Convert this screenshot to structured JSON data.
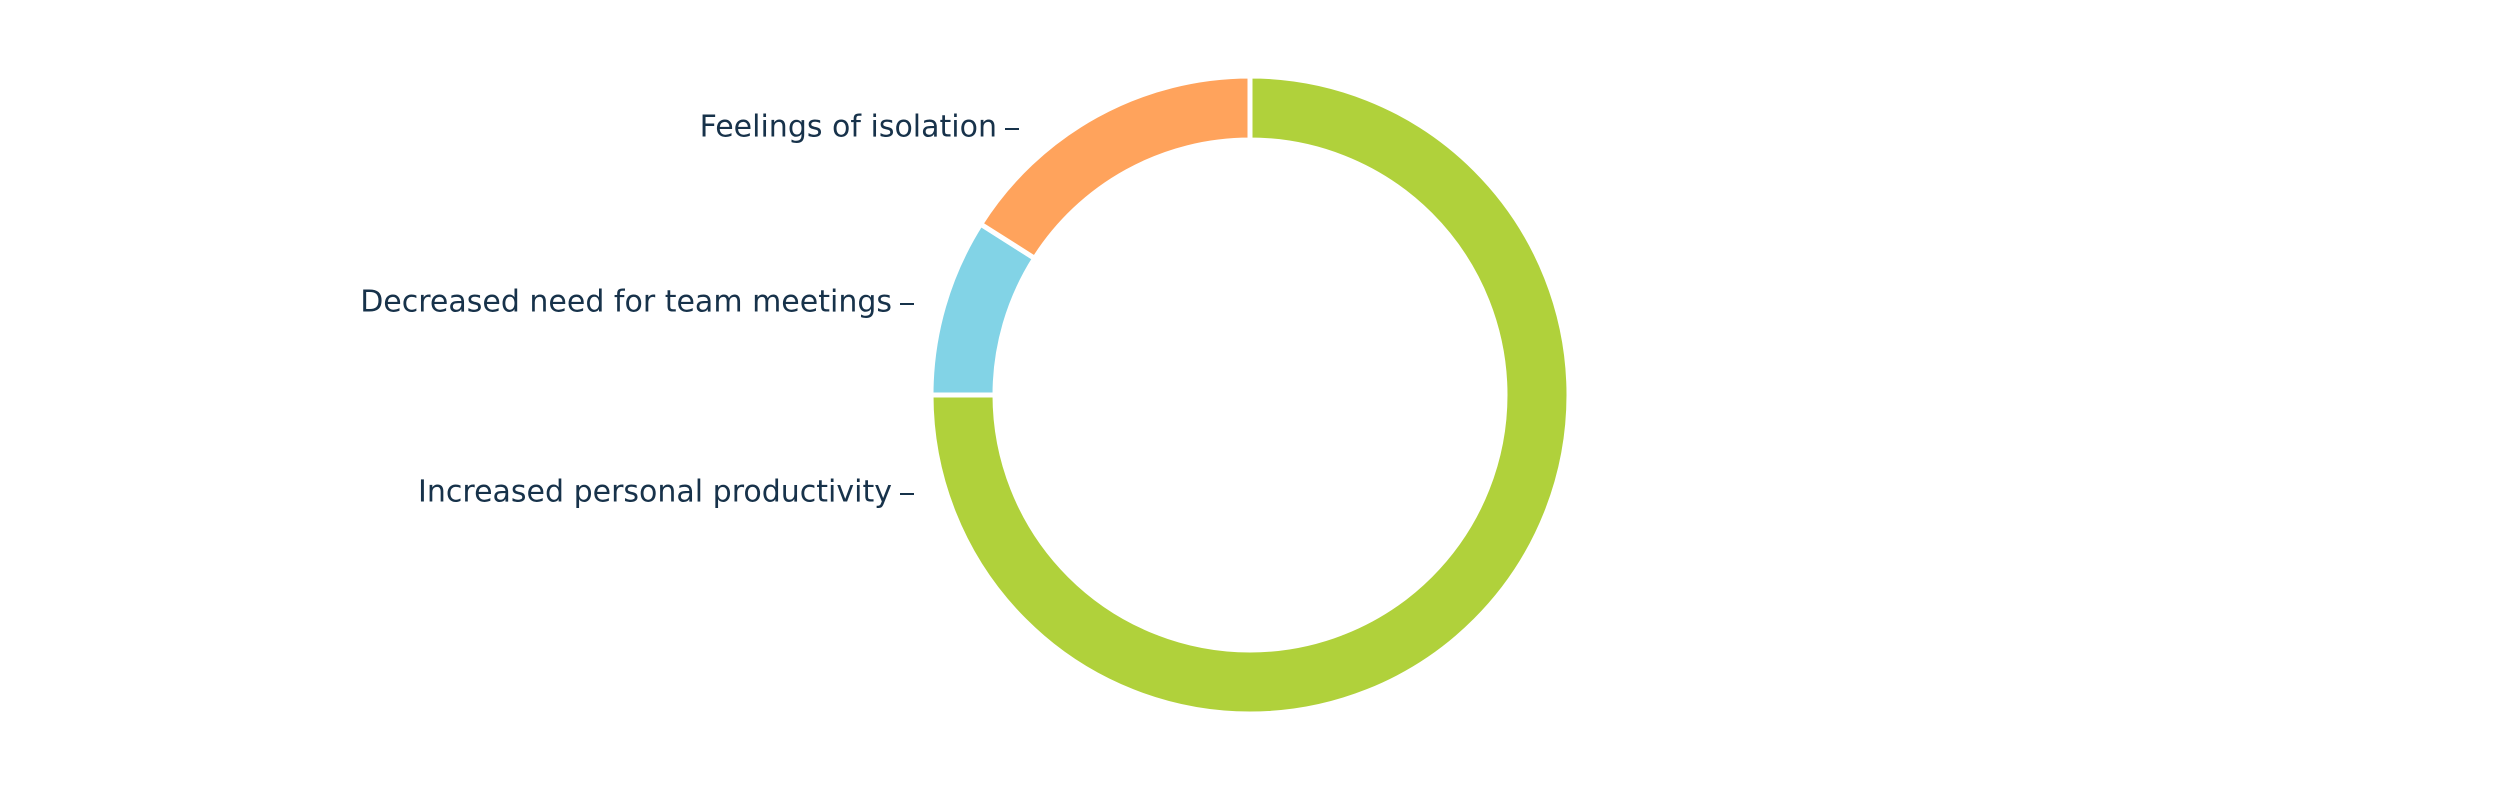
{
  "chart_data": {
    "type": "donut",
    "categories": [
      "Increased personal productivity",
      "Decreased need for team meetings",
      "Feelings of isolation"
    ],
    "values": [
      75,
      9,
      16
    ],
    "colors": [
      "#b0d13b",
      "#82d3e6",
      "#ffa35c"
    ]
  }
}
